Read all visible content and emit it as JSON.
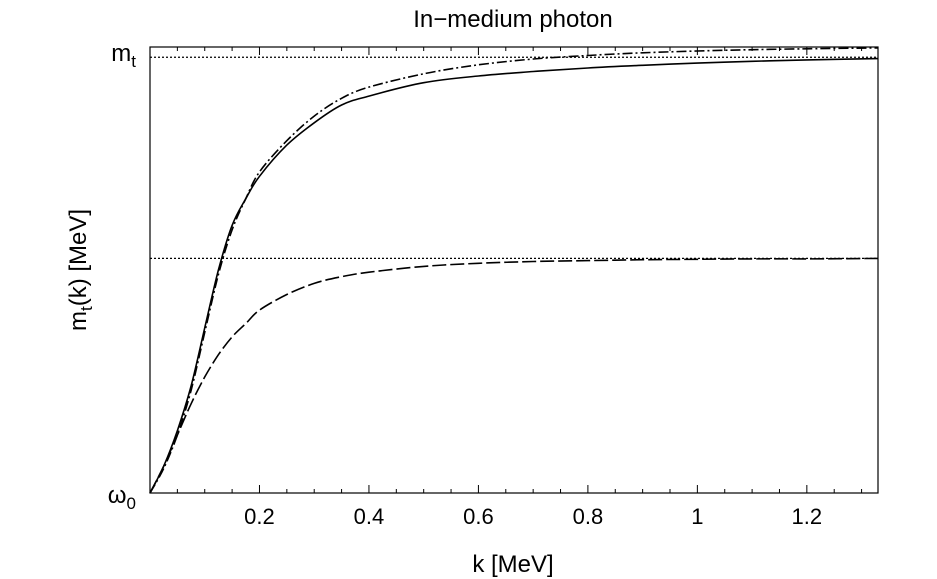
{
  "chart_data": {
    "type": "line",
    "title": "In−medium photon",
    "xlabel": "k [MeV]",
    "ylabel": {
      "main": "m",
      "sub": "t",
      "rest": "(k) [MeV]"
    },
    "xlim": [
      0,
      1.33
    ],
    "ylim": [
      0,
      1
    ],
    "x_ticks": [
      {
        "value": 0.2,
        "label": "0.2"
      },
      {
        "value": 0.4,
        "label": "0.4"
      },
      {
        "value": 0.6,
        "label": "0.6"
      },
      {
        "value": 0.8,
        "label": "0.8"
      },
      {
        "value": 1.0,
        "label": "1"
      },
      {
        "value": 1.2,
        "label": "1.2"
      }
    ],
    "y_ticks": [
      {
        "value": 0,
        "main": "ω",
        "sub": "0"
      },
      {
        "value": 1,
        "main": "m",
        "sub": "t"
      }
    ],
    "reference_lines": [
      {
        "y": 0.977,
        "style": "dotted"
      },
      {
        "y": 0.526,
        "style": "dotted"
      }
    ],
    "series": [
      {
        "style": "solid",
        "x": [
          0,
          0.025,
          0.05,
          0.075,
          0.1,
          0.125,
          0.15,
          0.175,
          0.2,
          0.25,
          0.3,
          0.35,
          0.4,
          0.5,
          0.6,
          0.7,
          0.8,
          0.9,
          1.0,
          1.1,
          1.2,
          1.33
        ],
        "y": [
          0,
          0.06,
          0.14,
          0.24,
          0.37,
          0.5,
          0.6,
          0.66,
          0.71,
          0.78,
          0.83,
          0.87,
          0.89,
          0.92,
          0.935,
          0.945,
          0.953,
          0.959,
          0.964,
          0.968,
          0.971,
          0.974
        ]
      },
      {
        "style": "dash-dot",
        "x": [
          0,
          0.025,
          0.05,
          0.075,
          0.1,
          0.125,
          0.15,
          0.175,
          0.2,
          0.25,
          0.3,
          0.35,
          0.4,
          0.5,
          0.6,
          0.7,
          0.8,
          0.9,
          1.0,
          1.1,
          1.2,
          1.33
        ],
        "y": [
          0,
          0.055,
          0.13,
          0.23,
          0.36,
          0.49,
          0.59,
          0.66,
          0.72,
          0.79,
          0.845,
          0.885,
          0.91,
          0.94,
          0.96,
          0.973,
          0.981,
          0.987,
          0.991,
          0.994,
          0.996,
          0.998
        ]
      },
      {
        "style": "long-dash",
        "x": [
          0,
          0.025,
          0.05,
          0.075,
          0.1,
          0.125,
          0.15,
          0.175,
          0.2,
          0.25,
          0.3,
          0.35,
          0.4,
          0.5,
          0.6,
          0.7,
          0.8,
          0.9,
          1.0,
          1.1,
          1.2,
          1.33
        ],
        "y": [
          0,
          0.06,
          0.13,
          0.2,
          0.26,
          0.31,
          0.35,
          0.38,
          0.41,
          0.445,
          0.47,
          0.485,
          0.495,
          0.508,
          0.515,
          0.519,
          0.521,
          0.523,
          0.524,
          0.525,
          0.525,
          0.526
        ]
      }
    ]
  }
}
